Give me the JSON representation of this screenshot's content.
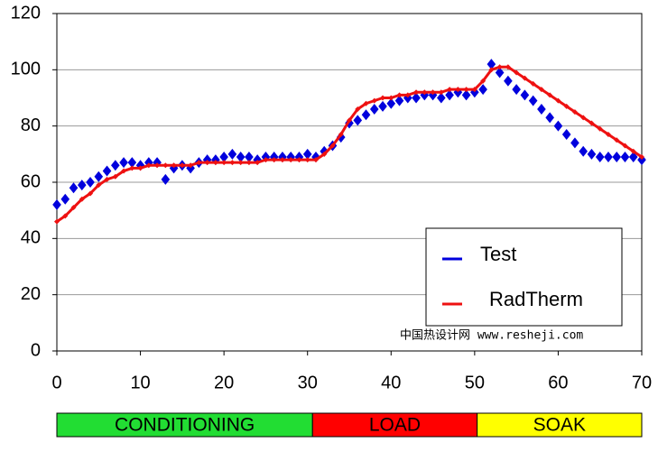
{
  "chart_data": {
    "type": "line",
    "x": [
      0,
      1,
      2,
      3,
      4,
      5,
      6,
      7,
      8,
      9,
      10,
      11,
      12,
      13,
      14,
      15,
      16,
      17,
      18,
      19,
      20,
      21,
      22,
      23,
      24,
      25,
      26,
      27,
      28,
      29,
      30,
      31,
      32,
      33,
      34,
      35,
      36,
      37,
      38,
      39,
      40,
      41,
      42,
      43,
      44,
      45,
      46,
      47,
      48,
      49,
      50,
      51,
      52,
      53,
      54,
      55,
      56,
      57,
      58,
      59,
      60,
      61,
      62,
      63,
      64,
      65,
      66,
      67,
      68,
      69,
      70
    ],
    "series": [
      {
        "name": "Test",
        "color": "#0000dd",
        "marker": "diamond",
        "values": [
          52,
          54,
          58,
          59,
          60,
          62,
          64,
          66,
          67,
          67,
          66,
          67,
          67,
          61,
          65,
          66,
          65,
          67,
          68,
          68,
          69,
          70,
          69,
          69,
          68,
          69,
          69,
          69,
          69,
          69,
          70,
          69,
          71,
          73,
          76,
          81,
          82,
          84,
          86,
          87,
          88,
          89,
          90,
          90,
          91,
          91,
          90,
          91,
          92,
          91,
          92,
          93,
          102,
          99,
          96,
          93,
          91,
          89,
          86,
          83,
          80,
          77,
          74,
          71,
          70,
          69,
          69,
          69,
          69,
          69,
          68
        ]
      },
      {
        "name": "RadTherm",
        "color": "#ee1111",
        "marker": "line",
        "values": [
          46,
          48,
          51,
          54,
          56,
          59,
          61,
          62,
          64,
          65,
          65,
          66,
          66,
          66,
          66,
          66,
          66,
          67,
          67,
          67,
          67,
          67,
          67,
          67,
          67,
          68,
          68,
          68,
          68,
          68,
          68,
          68,
          70,
          73,
          77,
          82,
          86,
          88,
          89,
          90,
          90,
          91,
          91,
          92,
          92,
          92,
          92,
          93,
          93,
          93,
          93,
          96,
          100,
          101,
          101,
          99,
          97,
          95,
          93,
          91,
          89,
          87,
          85,
          83,
          81,
          79,
          77,
          75,
          73,
          71,
          69
        ]
      }
    ],
    "xlim": [
      0,
      70
    ],
    "xticks": [
      0,
      10,
      20,
      30,
      40,
      50,
      60,
      70
    ],
    "ylim": [
      0,
      120
    ],
    "yticks": [
      0,
      20,
      40,
      60,
      80,
      100,
      120
    ],
    "grid": true,
    "legend": "lower right",
    "annotation": "中国热设计网 www.resheji.com",
    "phases": [
      {
        "label": "CONDITIONING",
        "start": 0,
        "end": 30.6,
        "color": "#22dd33"
      },
      {
        "label": "LOAD",
        "start": 30.6,
        "end": 50.3,
        "color": "#ff0000"
      },
      {
        "label": "SOAK",
        "start": 50.3,
        "end": 70,
        "color": "#ffff00"
      }
    ]
  }
}
